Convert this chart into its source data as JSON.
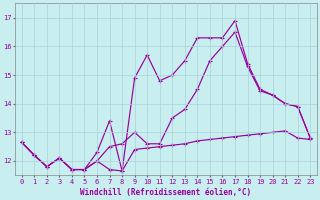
{
  "xlabel": "Windchill (Refroidissement éolien,°C)",
  "bg_color": "#c8eef0",
  "plot_bg_color": "#c8eef0",
  "grid_color": "#aad4d8",
  "line_color": "#990099",
  "marker": "+",
  "xlim": [
    -0.5,
    23.5
  ],
  "ylim": [
    11.5,
    17.5
  ],
  "yticks": [
    12,
    13,
    14,
    15,
    16,
    17
  ],
  "xticks": [
    0,
    1,
    2,
    3,
    4,
    5,
    6,
    7,
    8,
    9,
    10,
    11,
    12,
    13,
    14,
    15,
    16,
    17,
    18,
    19,
    20,
    21,
    22,
    23
  ],
  "series1_x": [
    0,
    1,
    2,
    3,
    4,
    5,
    6,
    7,
    8,
    9,
    10,
    11,
    12,
    13,
    14,
    15,
    16,
    17,
    18,
    19,
    20,
    21,
    22,
    23
  ],
  "series1_y": [
    12.65,
    12.2,
    11.8,
    12.1,
    11.7,
    11.7,
    12.0,
    11.7,
    11.65,
    12.4,
    12.45,
    12.5,
    12.55,
    12.6,
    12.7,
    12.75,
    12.8,
    12.85,
    12.9,
    12.95,
    13.0,
    13.05,
    12.8,
    12.75
  ],
  "series2_x": [
    0,
    1,
    2,
    3,
    4,
    5,
    6,
    7,
    8,
    9,
    10,
    11,
    12,
    13,
    14,
    15,
    16,
    17,
    18,
    19,
    20,
    21,
    22,
    23
  ],
  "series2_y": [
    12.65,
    12.2,
    11.8,
    12.1,
    11.7,
    11.7,
    12.3,
    13.4,
    11.65,
    14.9,
    15.7,
    14.8,
    15.0,
    15.5,
    16.3,
    16.3,
    16.3,
    16.9,
    15.4,
    14.5,
    14.3,
    14.0,
    13.9,
    12.8
  ],
  "series3_x": [
    0,
    1,
    2,
    3,
    4,
    5,
    6,
    7,
    8,
    9,
    10,
    11,
    12,
    13,
    14,
    15,
    16,
    17,
    18,
    19,
    20,
    21,
    22,
    23
  ],
  "series3_y": [
    12.65,
    12.2,
    11.8,
    12.1,
    11.7,
    11.7,
    12.0,
    12.5,
    12.6,
    13.0,
    12.6,
    12.6,
    13.5,
    13.8,
    14.5,
    15.5,
    16.0,
    16.5,
    15.3,
    14.45,
    14.3,
    14.0,
    13.9,
    12.8
  ],
  "xlabel_fontsize": 5.5,
  "tick_fontsize": 5.0
}
